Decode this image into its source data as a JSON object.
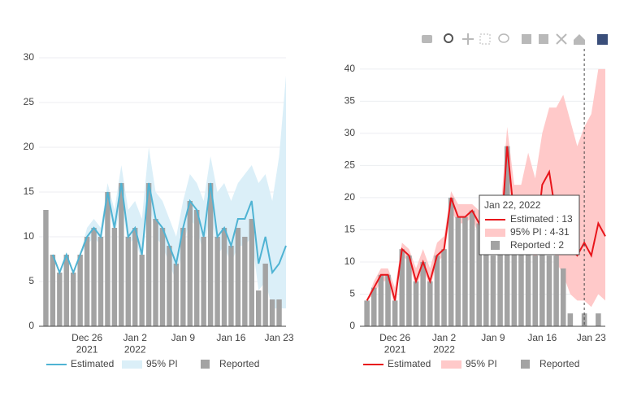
{
  "chart_data": [
    {
      "type": "line",
      "x": [
        "2021-12-20",
        "2021-12-21",
        "2021-12-22",
        "2021-12-23",
        "2021-12-24",
        "2021-12-25",
        "2021-12-26",
        "2021-12-27",
        "2021-12-28",
        "2021-12-29",
        "2021-12-30",
        "2021-12-31",
        "2022-01-01",
        "2022-01-02",
        "2022-01-03",
        "2022-01-04",
        "2022-01-05",
        "2022-01-06",
        "2022-01-07",
        "2022-01-08",
        "2022-01-09",
        "2022-01-10",
        "2022-01-11",
        "2022-01-12",
        "2022-01-13",
        "2022-01-14",
        "2022-01-15",
        "2022-01-16",
        "2022-01-17",
        "2022-01-18",
        "2022-01-19",
        "2022-01-20",
        "2022-01-21",
        "2022-01-22",
        "2022-01-23",
        "2022-01-24"
      ],
      "xlim": [
        "2021-12-19",
        "2022-01-24"
      ],
      "xticks": [
        {
          "value": "2021-12-26",
          "label": "Dec 26\n2021"
        },
        {
          "value": "2022-01-02",
          "label": "Jan 2\n2022"
        },
        {
          "value": "2022-01-09",
          "label": "Jan 9"
        },
        {
          "value": "2022-01-16",
          "label": "Jan 16"
        },
        {
          "value": "2022-01-23",
          "label": "Jan 23"
        }
      ],
      "ylim": [
        0,
        30
      ],
      "yticks": [
        0,
        5,
        10,
        15,
        20,
        25,
        30
      ],
      "grid": true,
      "series": [
        {
          "name": "Estimated",
          "kind": "line",
          "color": "#4fb3d3",
          "values": [
            null,
            8,
            6,
            8,
            6,
            8,
            10,
            11,
            10,
            15,
            11,
            16,
            10,
            11,
            8,
            16,
            12,
            11,
            9,
            7,
            11,
            14,
            13,
            10,
            16,
            10,
            11,
            9,
            12,
            12,
            14,
            7,
            10,
            6,
            7,
            9
          ]
        },
        {
          "name": "95% PI",
          "kind": "band",
          "color": "#dbeff8",
          "upper": [
            null,
            8,
            6,
            8,
            6,
            8,
            11,
            12,
            11,
            16,
            13,
            18,
            13,
            14,
            12,
            20,
            15,
            14,
            12,
            10,
            14,
            17,
            16,
            14,
            19,
            15,
            16,
            14,
            16,
            17,
            18,
            16,
            17,
            14,
            19,
            28
          ],
          "lower": [
            null,
            8,
            6,
            8,
            6,
            8,
            9,
            10,
            9,
            14,
            10,
            14,
            9,
            10,
            7,
            14,
            10,
            9,
            7,
            5,
            9,
            12,
            11,
            8,
            13,
            8,
            9,
            7,
            9,
            9,
            10,
            4,
            5,
            2,
            2,
            2
          ]
        },
        {
          "name": "Reported",
          "kind": "bar",
          "color": "#a3a3a3",
          "values": [
            13,
            8,
            6,
            8,
            6,
            8,
            10,
            11,
            10,
            15,
            11,
            16,
            10,
            11,
            8,
            16,
            12,
            11,
            9,
            7,
            11,
            14,
            13,
            10,
            16,
            10,
            11,
            9,
            11,
            10,
            12,
            4,
            7,
            3,
            3,
            null
          ]
        }
      ]
    },
    {
      "type": "line",
      "x": [
        "2021-12-22",
        "2021-12-23",
        "2021-12-24",
        "2021-12-25",
        "2021-12-26",
        "2021-12-27",
        "2021-12-28",
        "2021-12-29",
        "2021-12-30",
        "2021-12-31",
        "2022-01-01",
        "2022-01-02",
        "2022-01-03",
        "2022-01-04",
        "2022-01-05",
        "2022-01-06",
        "2022-01-07",
        "2022-01-08",
        "2022-01-09",
        "2022-01-10",
        "2022-01-11",
        "2022-01-12",
        "2022-01-13",
        "2022-01-14",
        "2022-01-15",
        "2022-01-16",
        "2022-01-17",
        "2022-01-18",
        "2022-01-19",
        "2022-01-20",
        "2022-01-21",
        "2022-01-22",
        "2022-01-23",
        "2022-01-24",
        "2022-01-25"
      ],
      "xlim": [
        "2021-12-21",
        "2022-01-25"
      ],
      "xticks": [
        {
          "value": "2021-12-26",
          "label": "Dec 26\n2021"
        },
        {
          "value": "2022-01-02",
          "label": "Jan 2\n2022"
        },
        {
          "value": "2022-01-09",
          "label": "Jan 9"
        },
        {
          "value": "2022-01-16",
          "label": "Jan 16"
        },
        {
          "value": "2022-01-23",
          "label": "Jan 23"
        }
      ],
      "ylim": [
        0,
        41.5
      ],
      "yticks": [
        0,
        5,
        10,
        15,
        20,
        25,
        30,
        35,
        40
      ],
      "grid": true,
      "series": [
        {
          "name": "Estimated",
          "kind": "line",
          "color": "#e8151b",
          "values": [
            4,
            6,
            8,
            8,
            4,
            12,
            11,
            7,
            10,
            7,
            11,
            12,
            20,
            17,
            17,
            18,
            16,
            12,
            17,
            12,
            28,
            17,
            15,
            20,
            12,
            22,
            24,
            17,
            15,
            12,
            11,
            13,
            11,
            16,
            14
          ]
        },
        {
          "name": "95% PI",
          "kind": "band",
          "color": "#ffc9c9",
          "upper": [
            4,
            7,
            9,
            9,
            6,
            13,
            12,
            9,
            12,
            9,
            13,
            14,
            21,
            19,
            19,
            19,
            18,
            15,
            20,
            17,
            31,
            22,
            22,
            27,
            23,
            30,
            34,
            34,
            36,
            32,
            28,
            31,
            33,
            40,
            40
          ],
          "lower": [
            4,
            5,
            7,
            7,
            3,
            11,
            10,
            6,
            9,
            6,
            10,
            11,
            18,
            16,
            16,
            17,
            14,
            10,
            15,
            10,
            25,
            14,
            12,
            16,
            9,
            16,
            16,
            10,
            8,
            5,
            4,
            4,
            3,
            5,
            4
          ]
        },
        {
          "name": "Reported",
          "kind": "bar",
          "color": "#a3a3a3",
          "values": [
            4,
            6,
            8,
            8,
            4,
            12,
            11,
            7,
            10,
            7,
            11,
            12,
            20,
            17,
            17,
            18,
            16,
            12,
            11,
            18,
            28,
            19,
            12,
            15,
            11,
            12,
            11,
            11,
            9,
            2,
            null,
            2,
            null,
            2,
            null
          ]
        }
      ],
      "hover_x": "2022-01-22",
      "tooltip": {
        "title": "Jan 22, 2022",
        "items": [
          "Estimated : 13",
          "95% PI : 4-31",
          "Reported : 2"
        ]
      }
    }
  ]
}
